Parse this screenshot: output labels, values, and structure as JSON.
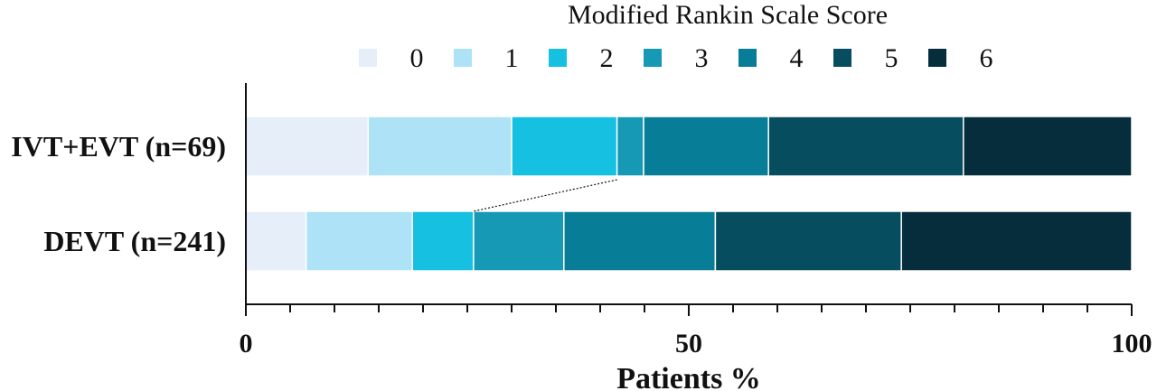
{
  "chart_data": {
    "type": "bar",
    "orientation": "horizontal",
    "stacked": true,
    "legend_title": "Modified Rankin Scale Score",
    "legend_placement": "top",
    "categories": [
      "IVT+EVT (n=69)",
      "DEVT (n=241)"
    ],
    "series": [
      {
        "name": "0",
        "color": "#e6eef9",
        "values": [
          13.8,
          6.8
        ]
      },
      {
        "name": "1",
        "color": "#aee2f6",
        "values": [
          16.2,
          12.0
        ]
      },
      {
        "name": "2",
        "color": "#16c0e0",
        "values": [
          11.9,
          6.9
        ]
      },
      {
        "name": "3",
        "color": "#1699b4",
        "values": [
          3.0,
          10.2
        ]
      },
      {
        "name": "4",
        "color": "#087d98",
        "values": [
          14.1,
          17.1
        ]
      },
      {
        "name": "5",
        "color": "#064d60",
        "values": [
          22.0,
          21.0
        ]
      },
      {
        "name": "6",
        "color": "#052d3b",
        "values": [
          19.0,
          26.0
        ]
      }
    ],
    "xlabel": "Patients %",
    "ylabel": "",
    "xlim": [
      0,
      100
    ],
    "x_major_ticks": [
      0,
      50,
      100
    ],
    "x_minor_tick_step": 5,
    "grid": false,
    "annotation": "dotted line connecting cumulative mRS 0-2 boundary between groups"
  }
}
